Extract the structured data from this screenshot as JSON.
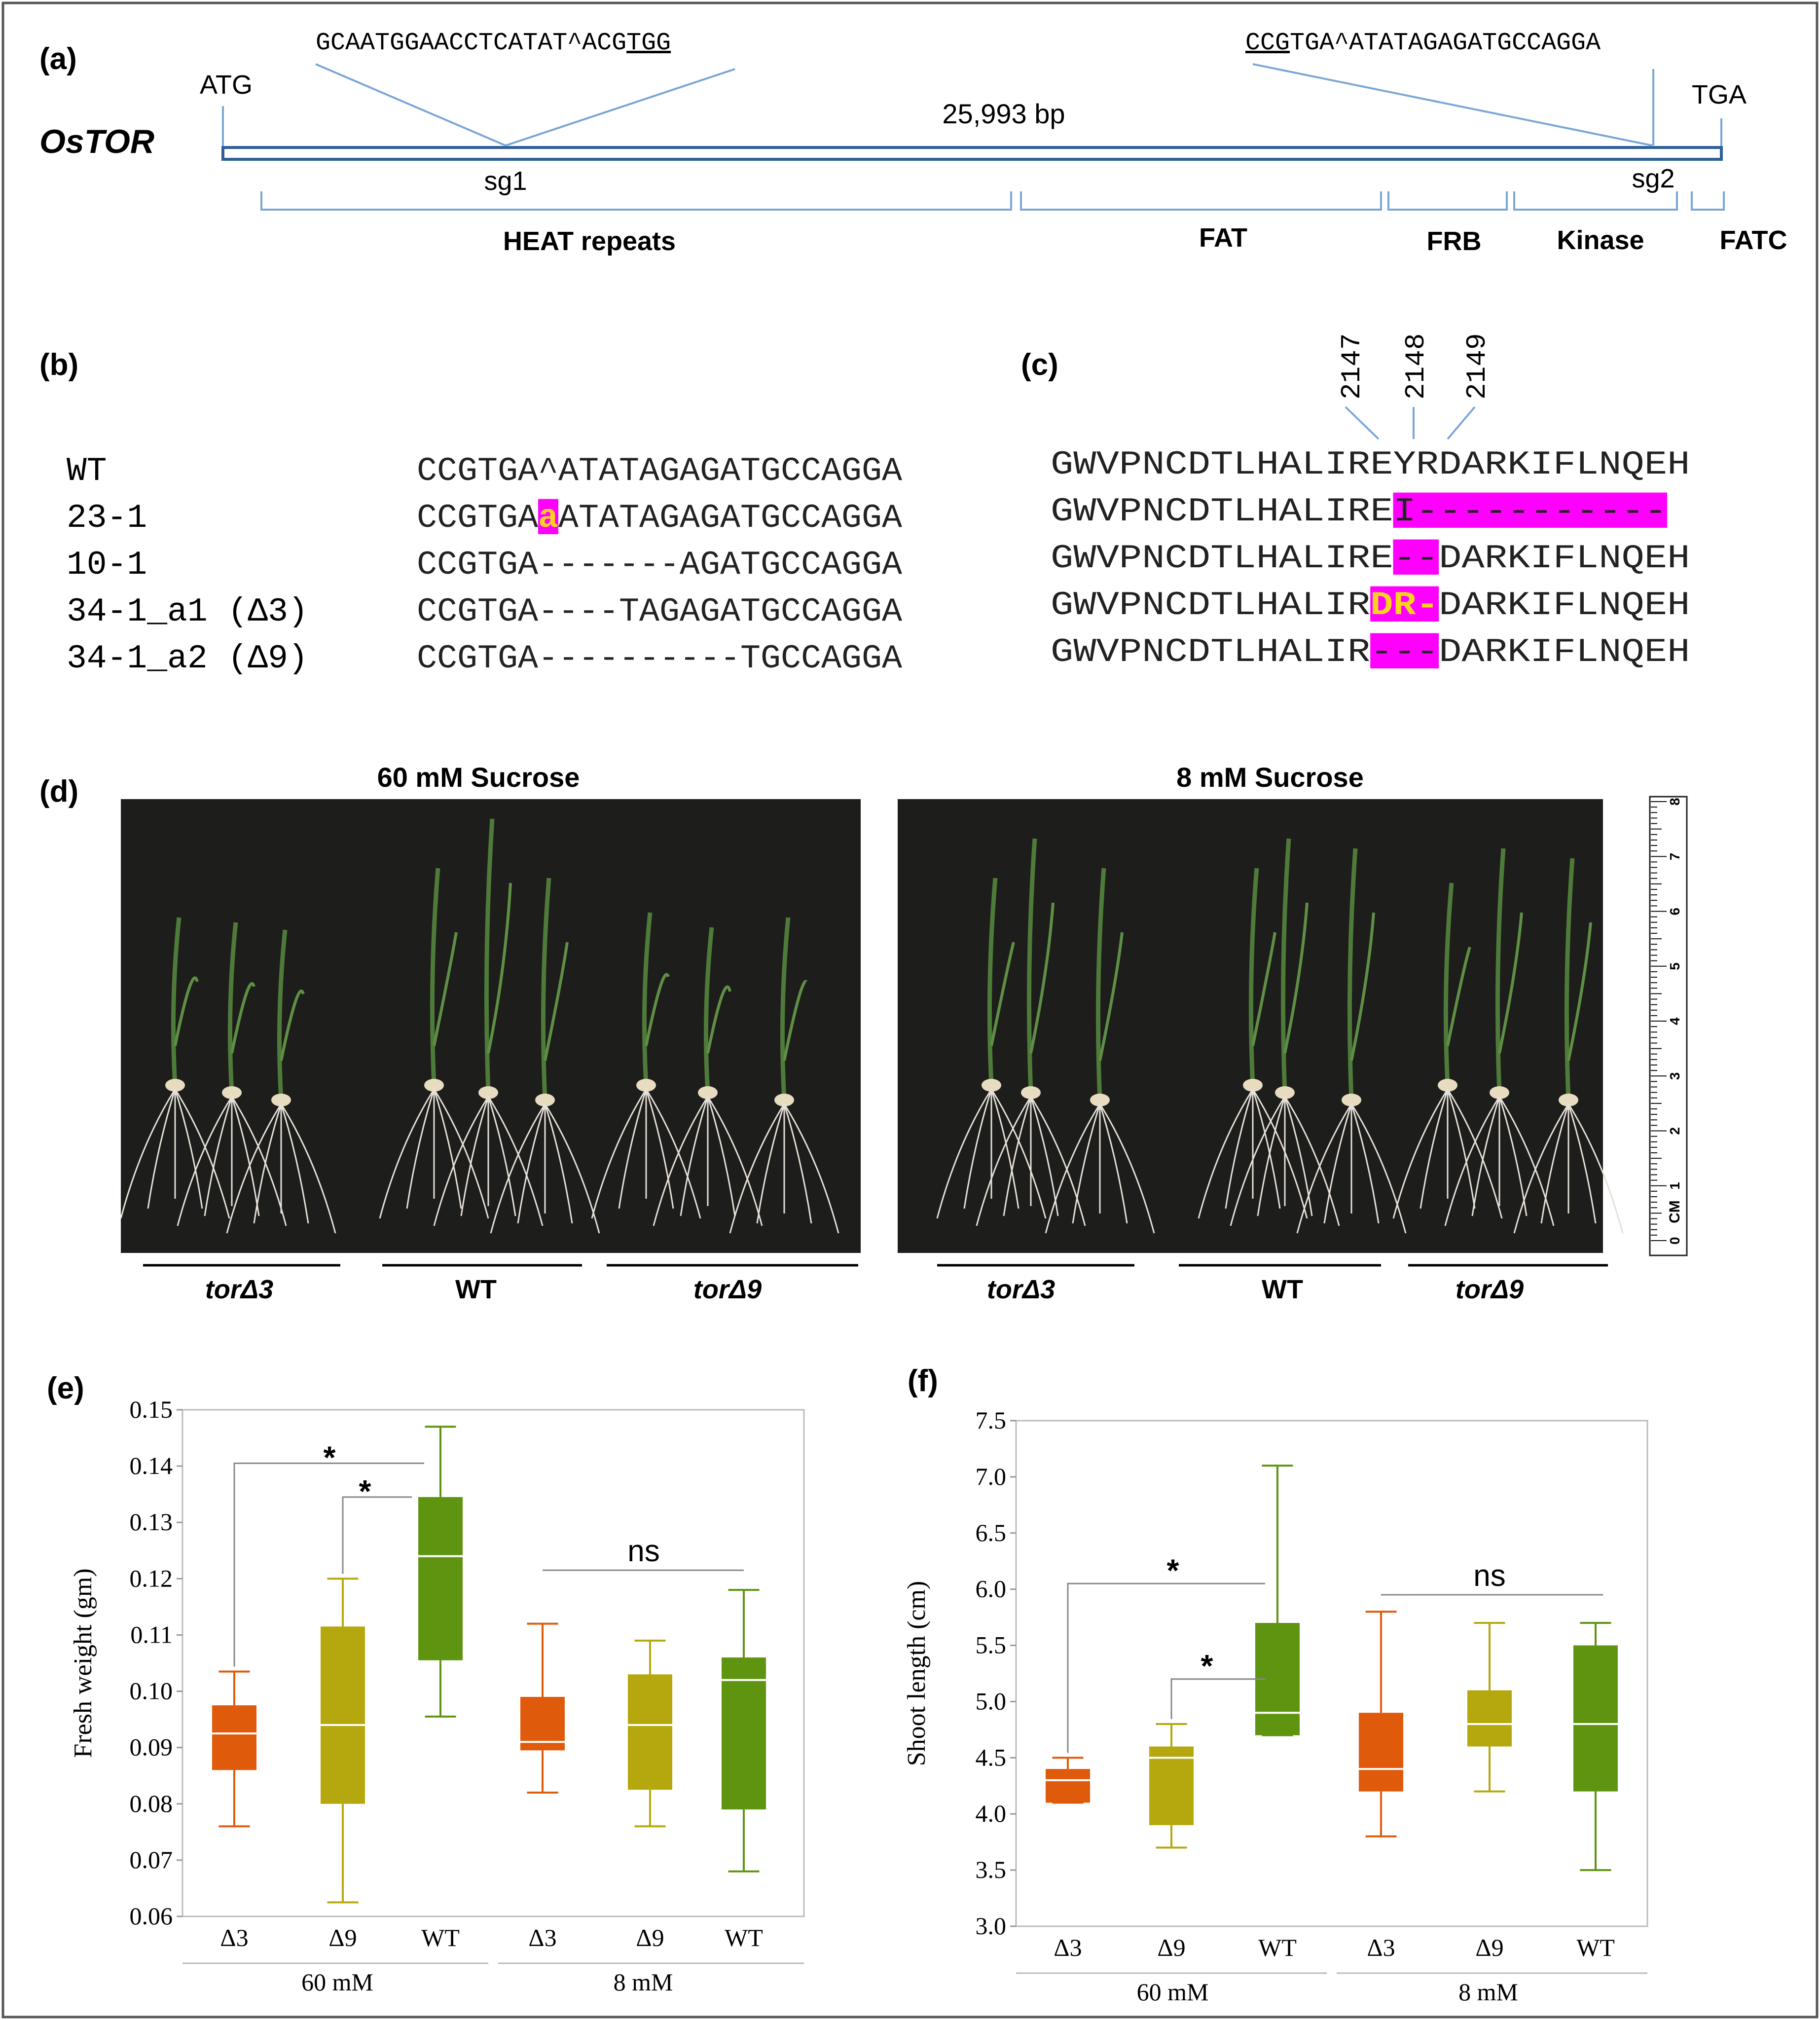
{
  "panel_a": {
    "label": "(a)",
    "gene": "OsTOR",
    "start_codon": "ATG",
    "stop_codon": "TGA",
    "length": "25,993 bp",
    "sg1_label": "sg1",
    "sg2_label": "sg2",
    "sg1_seq_pre": "GCAATGGAACCTCATAT^ACG",
    "sg1_seq_pam": "TGG",
    "sg2_seq_pam": "CCG",
    "sg2_seq_post": "TGA^ATATAGAGATGCCAGGA",
    "domains": [
      "HEAT repeats",
      "FAT",
      "FRB",
      "Kinase",
      "FATC"
    ]
  },
  "panel_b": {
    "label": "(b)",
    "rows": [
      {
        "name": "WT",
        "pre": "CCGTGA^ATATAGAGATGCCAGGA",
        "mark": "",
        "post": ""
      },
      {
        "name": "23-1",
        "pre": "CCGTGA",
        "mark": "a",
        "post": "ATATAGAGATGCCAGGA"
      },
      {
        "name": "10-1",
        "pre": "CCGTGA-------AGATGCCAGGA",
        "mark": "",
        "post": ""
      },
      {
        "name": "34-1_a1 (Δ3)",
        "pre": "CCGTGA----TAGAGATGCCAGGA",
        "mark": "",
        "post": ""
      },
      {
        "name": "34-1_a2 (Δ9)",
        "pre": "CCGTGA----------TGCCAGGA",
        "mark": "",
        "post": ""
      }
    ]
  },
  "panel_c": {
    "label": "(c)",
    "positions": [
      "2147",
      "2148",
      "2149"
    ],
    "rows": [
      {
        "pre": "GWVPNCDTLHALIREYRDARKIFLNQEH",
        "mark": "",
        "post": ""
      },
      {
        "pre": "GWVPNCDTLHALIRE",
        "mark": "I-----------",
        "post": ""
      },
      {
        "pre": "GWVPNCDTLHALIRE",
        "mark": "--",
        "post": "DARKIFLNQEH"
      },
      {
        "pre": "GWVPNCDTLHALIR",
        "mark": "DR-",
        "post": "DARKIFLNQEH"
      },
      {
        "pre": "GWVPNCDTLHALIR",
        "mark": "---",
        "post": "DARKIFLNQEH"
      }
    ]
  },
  "panel_d": {
    "label": "(d)",
    "left_title": "60 mM Sucrose",
    "right_title": "8 mM Sucrose",
    "groups": [
      "torΔ3",
      "WT",
      "torΔ9"
    ],
    "ruler_ticks": [
      "0",
      "1",
      "2",
      "3",
      "4",
      "5",
      "6",
      "7",
      "8"
    ],
    "ruler_unit": "CM"
  },
  "colors": {
    "magenta": "#ff00ff",
    "mark_text": "#ffd21f",
    "delta3": "#e05a0b",
    "delta9": "#b5a80e",
    "wt": "#5f9411",
    "gene_line": "#2e5f98",
    "bracket": "#7aa6d6"
  },
  "chart_data": [
    {
      "type": "box",
      "panel_label": "(e)",
      "ylabel": "Fresh weight (gm)",
      "ylim": [
        0.06,
        0.15
      ],
      "yticks": [
        "0.06",
        "0.07",
        "0.08",
        "0.09",
        "0.10",
        "0.11",
        "0.12",
        "0.13",
        "0.14",
        "0.15"
      ],
      "categories": [
        "Δ3",
        "Δ9",
        "WT",
        "Δ3",
        "Δ9",
        "WT"
      ],
      "groups": [
        "60 mM",
        "8 mM"
      ],
      "colors": [
        "#e05a0b",
        "#b5a80e",
        "#5f9411",
        "#e05a0b",
        "#b5a80e",
        "#5f9411"
      ],
      "boxes": [
        {
          "min": 0.076,
          "q1": 0.086,
          "median": 0.0925,
          "q3": 0.0975,
          "max": 0.1035
        },
        {
          "min": 0.0625,
          "q1": 0.08,
          "median": 0.094,
          "q3": 0.1115,
          "max": 0.12
        },
        {
          "min": 0.0955,
          "q1": 0.1055,
          "median": 0.124,
          "q3": 0.1345,
          "max": 0.147
        },
        {
          "min": 0.082,
          "q1": 0.0895,
          "median": 0.091,
          "q3": 0.099,
          "max": 0.112
        },
        {
          "min": 0.076,
          "q1": 0.0825,
          "median": 0.094,
          "q3": 0.103,
          "max": 0.109
        },
        {
          "min": 0.068,
          "q1": 0.079,
          "median": 0.102,
          "q3": 0.106,
          "max": 0.118
        }
      ],
      "annotations": [
        "*",
        "*",
        "ns"
      ]
    },
    {
      "type": "box",
      "panel_label": "(f)",
      "ylabel": "Shoot length (cm)",
      "ylim": [
        3.0,
        7.5
      ],
      "yticks": [
        "3.0",
        "3.5",
        "4.0",
        "4.5",
        "5.0",
        "5.5",
        "6.0",
        "6.5",
        "7.0",
        "7.5"
      ],
      "categories": [
        "Δ3",
        "Δ9",
        "WT",
        "Δ3",
        "Δ9",
        "WT"
      ],
      "groups": [
        "60 mM",
        "8 mM"
      ],
      "colors": [
        "#e05a0b",
        "#b5a80e",
        "#5f9411",
        "#e05a0b",
        "#b5a80e",
        "#5f9411"
      ],
      "boxes": [
        {
          "min": 4.1,
          "q1": 4.1,
          "median": 4.3,
          "q3": 4.4,
          "max": 4.5
        },
        {
          "min": 3.7,
          "q1": 3.9,
          "median": 4.5,
          "q3": 4.6,
          "max": 4.8
        },
        {
          "min": 4.7,
          "q1": 4.7,
          "median": 4.9,
          "q3": 5.7,
          "max": 7.1
        },
        {
          "min": 3.8,
          "q1": 4.2,
          "median": 4.4,
          "q3": 4.9,
          "max": 5.8
        },
        {
          "min": 4.2,
          "q1": 4.6,
          "median": 4.8,
          "q3": 5.1,
          "max": 5.7
        },
        {
          "min": 3.5,
          "q1": 4.2,
          "median": 4.8,
          "q3": 5.5,
          "max": 5.7
        }
      ],
      "annotations": [
        "*",
        "*",
        "ns"
      ]
    }
  ]
}
